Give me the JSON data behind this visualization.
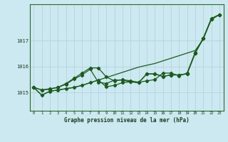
{
  "title": "Graphe pression niveau de la mer (hPa)",
  "background_color": "#cce8f0",
  "line_color": "#1a5c1a",
  "grid_color": "#b0d0dc",
  "x_ticks": [
    0,
    1,
    2,
    3,
    4,
    5,
    6,
    7,
    8,
    9,
    10,
    11,
    12,
    13,
    14,
    15,
    16,
    17,
    18,
    19,
    20,
    21,
    22,
    23
  ],
  "ylim": [
    1014.3,
    1018.4
  ],
  "yticks": [
    1015,
    1016,
    1017
  ],
  "series_smooth": [
    1015.2,
    1014.9,
    1015.05,
    1015.1,
    1015.15,
    1015.2,
    1015.28,
    1015.38,
    1015.48,
    1015.58,
    1015.68,
    1015.78,
    1015.88,
    1015.98,
    1016.05,
    1016.12,
    1016.22,
    1016.32,
    1016.42,
    1016.52,
    1016.62,
    1017.05,
    1017.85,
    1018.0
  ],
  "series_upper": [
    1015.2,
    1015.1,
    1015.15,
    1015.2,
    1015.35,
    1015.55,
    1015.75,
    1015.95,
    1015.95,
    1015.6,
    1015.45,
    1015.5,
    1015.45,
    1015.4,
    1015.45,
    1015.5,
    1015.75,
    1015.75,
    1015.65,
    1015.75,
    1016.55,
    1017.1,
    1017.85,
    1018.0
  ],
  "series_mid": [
    1015.2,
    1015.1,
    1015.13,
    1015.2,
    1015.32,
    1015.52,
    1015.68,
    1015.9,
    1015.4,
    1015.35,
    1015.48,
    1015.48,
    1015.42,
    1015.38,
    1015.72,
    1015.72,
    1015.62,
    1015.68,
    1015.68,
    1015.72,
    1016.52,
    1017.08,
    1017.82,
    1018.0
  ],
  "series_lower": [
    1015.2,
    1014.9,
    1015.05,
    1015.1,
    1015.15,
    1015.2,
    1015.28,
    1015.38,
    1015.48,
    1015.22,
    1015.28,
    1015.38,
    1015.42,
    1015.38,
    1015.72,
    1015.72,
    1015.62,
    1015.68,
    1015.68,
    1015.72,
    1016.52,
    1017.08,
    1017.82,
    1018.0
  ]
}
